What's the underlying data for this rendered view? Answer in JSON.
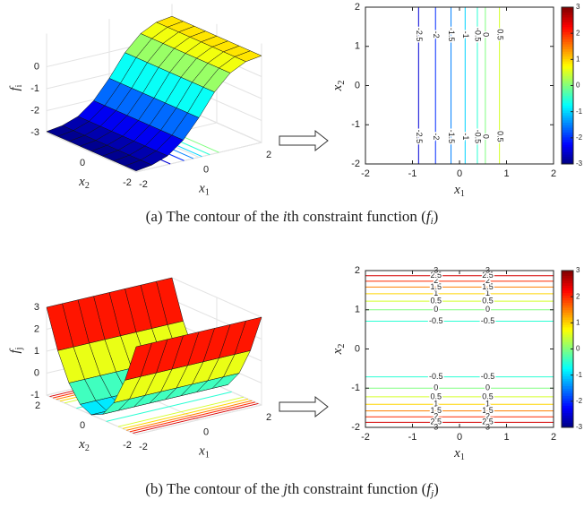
{
  "chart_data": [
    {
      "type": "surface",
      "zlabel": {
        "base": "f",
        "sub": "i"
      },
      "xlabel": {
        "base": "x",
        "sub": "1"
      },
      "ylabel": {
        "base": "x",
        "sub": "2"
      },
      "x": [
        -2,
        -1.5,
        -1,
        -0.5,
        0,
        0.5,
        1,
        1.5,
        2
      ],
      "y": [
        -2,
        -1.5,
        -1,
        -0.5,
        0,
        0.5,
        1,
        1.5,
        2
      ],
      "z": [
        [
          -2.95,
          -2.85,
          -2.6,
          -2.05,
          -1.2,
          -0.2,
          0.5,
          0.85,
          0.95
        ],
        [
          -2.95,
          -2.85,
          -2.6,
          -2.05,
          -1.2,
          -0.2,
          0.5,
          0.85,
          0.95
        ],
        [
          -2.95,
          -2.85,
          -2.6,
          -2.05,
          -1.2,
          -0.2,
          0.5,
          0.85,
          0.95
        ],
        [
          -2.95,
          -2.85,
          -2.6,
          -2.05,
          -1.2,
          -0.2,
          0.5,
          0.85,
          0.95
        ],
        [
          -2.95,
          -2.85,
          -2.6,
          -2.05,
          -1.2,
          -0.2,
          0.5,
          0.85,
          0.95
        ],
        [
          -2.95,
          -2.85,
          -2.6,
          -2.05,
          -1.2,
          -0.2,
          0.5,
          0.85,
          0.95
        ],
        [
          -2.95,
          -2.85,
          -2.6,
          -2.05,
          -1.2,
          -0.2,
          0.5,
          0.85,
          0.95
        ],
        [
          -2.95,
          -2.85,
          -2.6,
          -2.05,
          -1.2,
          -0.2,
          0.5,
          0.85,
          0.95
        ],
        [
          -2.95,
          -2.85,
          -2.6,
          -2.05,
          -1.2,
          -0.2,
          0.5,
          0.85,
          0.95
        ]
      ],
      "xlim": [
        -2,
        2
      ],
      "ylim": [
        -2,
        2
      ],
      "zlim": [
        -3,
        1.5
      ],
      "xticks": [
        -2,
        0,
        2
      ],
      "yticks": [
        -2,
        0
      ],
      "zticks": [
        -3,
        -2,
        -1,
        0
      ]
    },
    {
      "type": "contour",
      "orientation": "vertical",
      "xlabel": {
        "base": "x",
        "sub": "1"
      },
      "ylabel": {
        "base": "x",
        "sub": "2"
      },
      "xlim": [
        -2,
        2
      ],
      "ylim": [
        -2,
        2
      ],
      "xticks": [
        -2,
        -1,
        0,
        1,
        2
      ],
      "yticks": [
        -2,
        -1,
        0,
        1,
        2
      ],
      "lines": [
        {
          "level": -2.5,
          "x": -0.87
        },
        {
          "level": -2,
          "x": -0.51
        },
        {
          "level": -1.5,
          "x": -0.18
        },
        {
          "level": -1,
          "x": 0.12
        },
        {
          "level": -0.5,
          "x": 0.38
        },
        {
          "level": 0,
          "x": 0.55
        },
        {
          "level": 0.5,
          "x": 0.85
        }
      ],
      "clim": [
        -3,
        3
      ],
      "cticks": [
        -3,
        -2,
        -1,
        0,
        1,
        2,
        3
      ]
    },
    {
      "type": "surface",
      "zlabel": {
        "base": "f",
        "sub": "j"
      },
      "xlabel": {
        "base": "x",
        "sub": "1"
      },
      "ylabel": {
        "base": "x",
        "sub": "2"
      },
      "x": [
        -2,
        -1.5,
        -1,
        -0.5,
        0,
        0.5,
        1,
        1.5,
        2
      ],
      "y": [
        -2,
        -1.5,
        -1,
        -0.5,
        0,
        0.5,
        1,
        1.5,
        2
      ],
      "z": [
        [
          3,
          3,
          3,
          3,
          3,
          3,
          3,
          3,
          3
        ],
        [
          1.25,
          1.25,
          1.25,
          1.25,
          1.25,
          1.25,
          1.25,
          1.25,
          1.25
        ],
        [
          0,
          0,
          0,
          0,
          0,
          0,
          0,
          0,
          0
        ],
        [
          -0.75,
          -0.75,
          -0.75,
          -0.75,
          -0.75,
          -0.75,
          -0.75,
          -0.75,
          -0.75
        ],
        [
          -1,
          -1,
          -1,
          -1,
          -1,
          -1,
          -1,
          -1,
          -1
        ],
        [
          -0.75,
          -0.75,
          -0.75,
          -0.75,
          -0.75,
          -0.75,
          -0.75,
          -0.75,
          -0.75
        ],
        [
          0,
          0,
          0,
          0,
          0,
          0,
          0,
          0,
          0
        ],
        [
          1.25,
          1.25,
          1.25,
          1.25,
          1.25,
          1.25,
          1.25,
          1.25,
          1.25
        ],
        [
          3,
          3,
          3,
          3,
          3,
          3,
          3,
          3,
          3
        ]
      ],
      "xlim": [
        -2,
        2
      ],
      "ylim": [
        -2,
        2
      ],
      "zlim": [
        -1,
        3
      ],
      "xticks": [
        -2,
        0,
        2
      ],
      "yticks": [
        -2,
        0,
        2
      ],
      "zticks": [
        -1,
        0,
        1,
        2,
        3
      ]
    },
    {
      "type": "contour",
      "orientation": "horizontal",
      "xlabel": {
        "base": "x",
        "sub": "1"
      },
      "ylabel": {
        "base": "x",
        "sub": "2"
      },
      "xlim": [
        -2,
        2
      ],
      "ylim": [
        -2,
        2
      ],
      "xticks": [
        -2,
        -1,
        0,
        1,
        2
      ],
      "yticks": [
        -2,
        -1,
        0,
        1,
        2
      ],
      "lines": [
        {
          "level": -0.5,
          "y": [
            -0.71,
            0.71
          ]
        },
        {
          "level": 0,
          "y": [
            -1,
            1
          ]
        },
        {
          "level": 0.5,
          "y": [
            -1.22,
            1.22
          ]
        },
        {
          "level": 1,
          "y": [
            -1.41,
            1.41
          ]
        },
        {
          "level": 1.5,
          "y": [
            -1.58,
            1.58
          ]
        },
        {
          "level": 2,
          "y": [
            -1.73,
            1.73
          ]
        },
        {
          "level": 2.5,
          "y": [
            -1.87,
            1.87
          ]
        },
        {
          "level": 3,
          "y": [
            -2,
            2
          ]
        }
      ],
      "clim": [
        -3,
        3
      ],
      "cticks": [
        -3,
        -2,
        -1,
        0,
        1,
        2,
        3
      ]
    }
  ],
  "captions": [
    {
      "lead": "(a) The contour of the ",
      "var": "i",
      "mid": "th constraint function (",
      "f": "f",
      "sub": "i",
      "end": ")"
    },
    {
      "lead": "(b) The contour of the ",
      "var": "j",
      "mid": "th constraint function (",
      "f": "f",
      "sub": "j",
      "end": ")"
    }
  ]
}
